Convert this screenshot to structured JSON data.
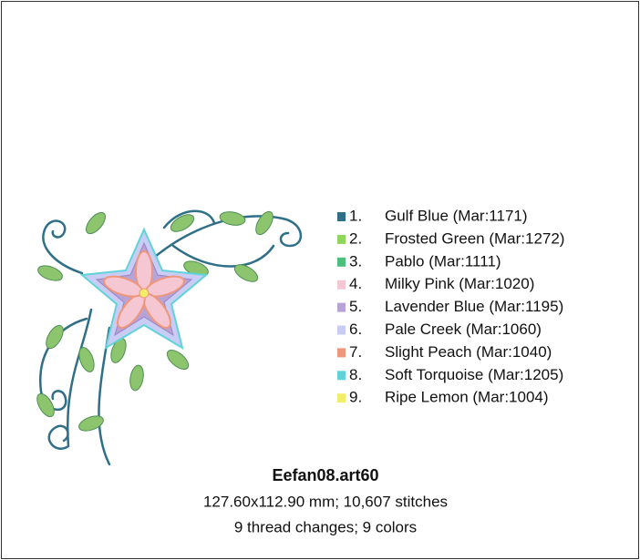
{
  "design": {
    "title": "Eefan08.art60",
    "details": [
      "127.60x112.90 mm; 10,607 stitches",
      "9 thread changes; 9 colors"
    ],
    "threads": [
      {
        "number": "1.",
        "name": "Gulf Blue (Mar:1171)",
        "color": "#2f6f88"
      },
      {
        "number": "2.",
        "name": "Frosted Green (Mar:1272)",
        "color": "#8fd65c"
      },
      {
        "number": "3.",
        "name": "Pablo (Mar:1111)",
        "color": "#4bbf7b"
      },
      {
        "number": "4.",
        "name": "Milky Pink (Mar:1020)",
        "color": "#f5c7d2"
      },
      {
        "number": "5.",
        "name": "Lavender Blue (Mar:1195)",
        "color": "#b8a3d6"
      },
      {
        "number": "6.",
        "name": "Pale Creek (Mar:1060)",
        "color": "#c9cdf6"
      },
      {
        "number": "7.",
        "name": "Slight Peach (Mar:1040)",
        "color": "#f0977b"
      },
      {
        "number": "8.",
        "name": "Soft Torquoise (Mar:1205)",
        "color": "#5fd3d8"
      },
      {
        "number": "9.",
        "name": "Ripe Lemon (Mar:1004)",
        "color": "#f3ee6a"
      }
    ]
  }
}
